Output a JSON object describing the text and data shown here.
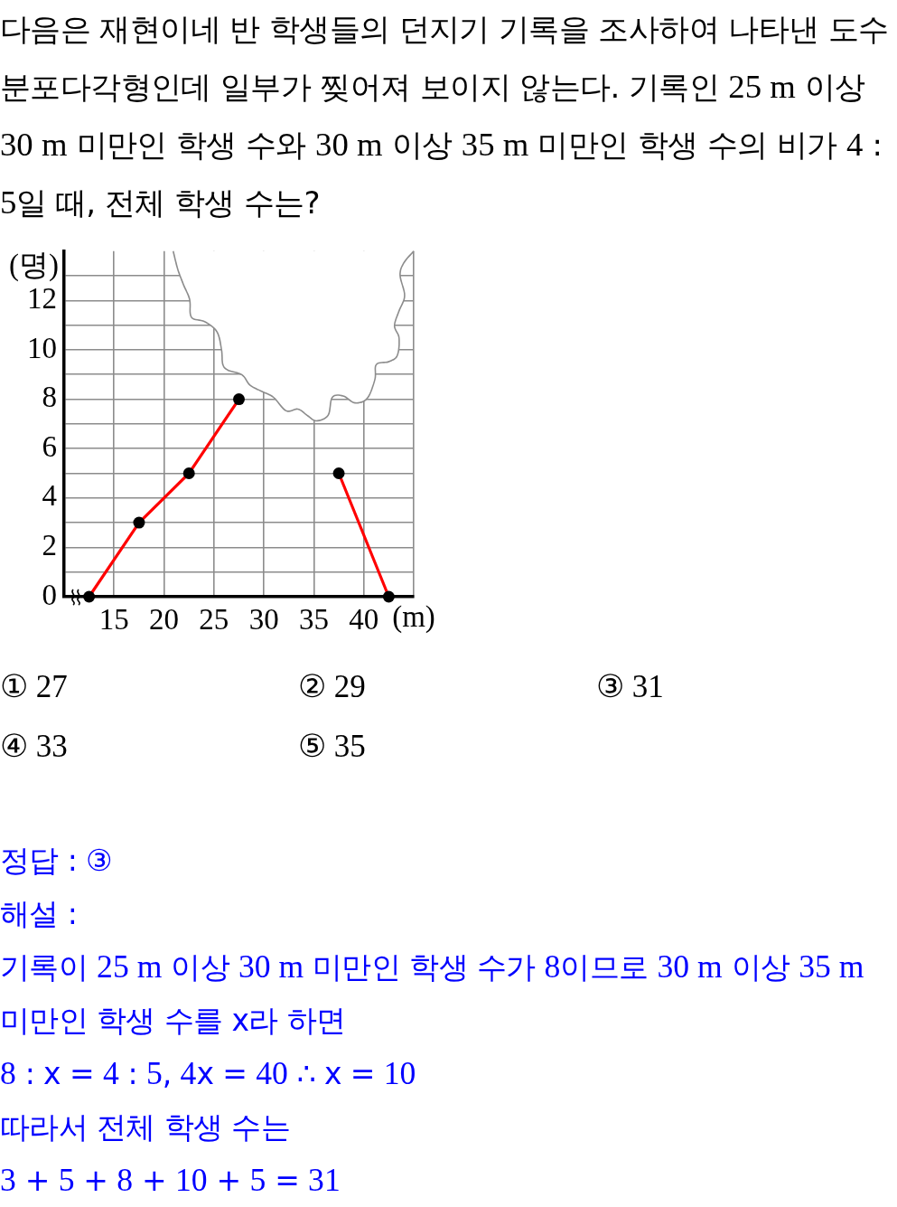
{
  "chart_data": {
    "type": "line",
    "title": "다음은 재현이네 반 학생들의 던지기 기록을 조사하여 나타낸 도수분포다각형인데 일부가 찢어져 보이지 않는다. 기록인 25 m 이상 30 m 미만인 학생 수와 30 m 이상 35 m 미만인 학생 수의 비가 4 : 5일 때, 전체 학생 수는?",
    "xlabel": "(m)",
    "ylabel": "(명)",
    "x": [
      12.5,
      17.5,
      22.5,
      27.5,
      32.5,
      37.5,
      42.5
    ],
    "series": [
      {
        "color": "#ff0000",
        "colors": [
          "#000000",
          "#000000",
          "#000000",
          "#000000",
          "#000000",
          "#000000",
          "#000000"
        ],
        "values": [
          0,
          3,
          5,
          8,
          null,
          5,
          0
        ]
      }
    ],
    "xlim": [
      10,
      45
    ],
    "xticks": [
      15,
      20,
      25,
      30,
      35,
      40,
      {
        "value": 45,
        "label": null
      }
    ],
    "ylim": [
      0,
      14
    ],
    "yticks": [
      0,
      {
        "value": 1,
        "label": null
      },
      2,
      {
        "value": 3,
        "label": null
      },
      4,
      {
        "value": 5,
        "label": null
      },
      6,
      {
        "value": 7,
        "label": null
      },
      8,
      {
        "value": 9,
        "label": null
      },
      10,
      {
        "value": 11,
        "label": null
      },
      12,
      {
        "value": 13,
        "label": null
      }
    ],
    "grid": true,
    "marker": "circle",
    "annotations": [
      "① 27",
      "② 29",
      "③ 31",
      "④ 33",
      "⑤ 35",
      "정답 : ③",
      "해설 :",
      "기록이 25 m 이상 30 m 미만인 학생 수가 8이므로 30 m 이상 35 m 미만인 학생 수를 x라 하면",
      "8 : x = 4 : 5, 4x = 40 ∴ x = 10",
      "따라서 전체 학생 수는",
      "3 + 5 + 8 + 10 + 5 = 31"
    ]
  }
}
